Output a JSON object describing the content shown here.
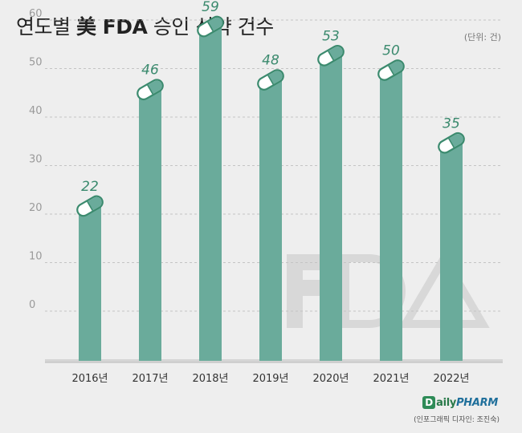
{
  "title_prefix": "연도별",
  "title_bold": "美 FDA",
  "title_suffix": "승인 신약 건수",
  "unit": "(단위: 건)",
  "credit": "(인포그래픽 디자인: 조진숙)",
  "logo": {
    "part1": "aily",
    "part2": "PHARM",
    "mark": "D"
  },
  "colors": {
    "bar": "#6aab9b",
    "label": "#3b8a6e",
    "watermark": "#d8d8d8"
  },
  "chart_data": {
    "type": "bar",
    "title": "연도별 美 FDA 승인 신약 건수",
    "categories": [
      "2016년",
      "2017년",
      "2018년",
      "2019년",
      "2020년",
      "2021년",
      "2022년"
    ],
    "values": [
      22,
      46,
      59,
      48,
      53,
      50,
      35
    ],
    "y_ticks": [
      0,
      10,
      20,
      30,
      40,
      50,
      60
    ],
    "grid": true,
    "grid_style": "dashed",
    "xlabel": "",
    "ylabel": ""
  }
}
